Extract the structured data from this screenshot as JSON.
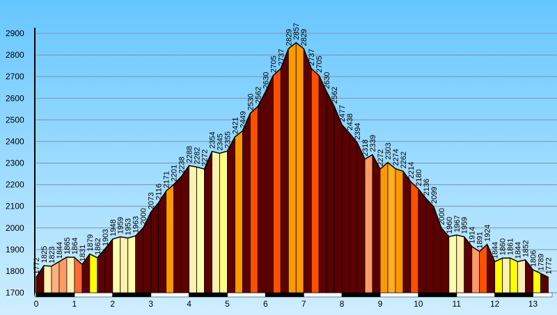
{
  "chart_data": {
    "type": "area",
    "x": [
      0,
      0.2,
      0.4,
      0.6,
      0.8,
      1,
      1.2,
      1.4,
      1.6,
      1.8,
      2,
      2.2,
      2.4,
      2.6,
      2.8,
      3,
      3.2,
      3.4,
      3.6,
      3.8,
      4,
      4.2,
      4.4,
      4.6,
      4.8,
      5,
      5.2,
      5.4,
      5.6,
      5.8,
      6,
      6.2,
      6.4,
      6.6,
      6.8,
      7,
      7.2,
      7.4,
      7.6,
      7.8,
      8,
      8.2,
      8.4,
      8.6,
      8.8,
      9,
      9.2,
      9.4,
      9.6,
      9.8,
      10,
      10.2,
      10.4,
      10.6,
      10.8,
      11,
      11.2,
      11.4,
      11.6,
      11.8,
      12,
      12.2,
      12.4,
      12.6,
      12.8,
      13,
      13.2,
      13.4
    ],
    "series": [
      {
        "values": [
          1772,
          1825,
          1823,
          1844,
          1865,
          1864,
          1831,
          1879,
          1862,
          1903,
          1948,
          1959,
          1953,
          1963,
          2000,
          2073,
          2116,
          2171,
          2201,
          2238,
          2288,
          2282,
          2272,
          2354,
          2345,
          2355,
          2421,
          2449,
          2530,
          2562,
          2630,
          2705,
          2737,
          2829,
          2857,
          2829,
          2737,
          2705,
          2630,
          2562,
          2477,
          2438,
          2394,
          2318,
          2339,
          2272,
          2303,
          2274,
          2262,
          2214,
          2180,
          2136,
          2099,
          2000,
          1960,
          1967,
          1959,
          1914,
          1891,
          1924,
          1844,
          1860,
          1861,
          1844,
          1852,
          1806,
          1789,
          1772
        ],
        "colors": [
          "#5c0000",
          "#fff0b0",
          "#ffb080",
          "#ff9966",
          "#fff0b0",
          "#ff6a30",
          "#5c0000",
          "#ffff00",
          "#5c0000",
          "#5c0000",
          "#ffffaa",
          "#fff0b0",
          "#ffffaa",
          "#5c0000",
          "#5c0000",
          "#5c0000",
          "#5c0000",
          "#ff9900",
          "#5c0000",
          "#5c0000",
          "#fff0b0",
          "#ffffaa",
          "#5c0000",
          "#fff0b0",
          "#ffff80",
          "#5c0000",
          "#ff9900",
          "#5c0000",
          "#ff5000",
          "#5c0000",
          "#5c0000",
          "#ff5000",
          "#5c0000",
          "#ff9900",
          "#ff9900",
          "#5c0000",
          "#ff5000",
          "#5c0000",
          "#5c0000",
          "#5c0000",
          "#5c0000",
          "#5c0000",
          "#5c0000",
          "#ff9966",
          "#5c0000",
          "#ff9900",
          "#ffb020",
          "#ff9900",
          "#5c0000",
          "#ff5000",
          "#5c0000",
          "#5c0000",
          "#5c0000",
          "#5c0000",
          "#ffffaa",
          "#fff0b0",
          "#5c0000",
          "#ff9966",
          "#ff5000",
          "#5c0000",
          "#ffff00",
          "#fff0b0",
          "#ffff00",
          "#fff0b0",
          "#5c0000",
          "#ffff00",
          "#5c0000"
        ]
      }
    ],
    "xlim": [
      0,
      13.5
    ],
    "xticks": [
      0,
      1,
      2,
      3,
      4,
      5,
      6,
      7,
      8,
      9,
      10,
      11,
      12,
      13
    ],
    "ylim": [
      1700,
      2900
    ],
    "yticks": [
      1700,
      1800,
      1900,
      2000,
      2100,
      2200,
      2300,
      2400,
      2500,
      2600,
      2700,
      2800,
      2900
    ],
    "grid": true
  }
}
